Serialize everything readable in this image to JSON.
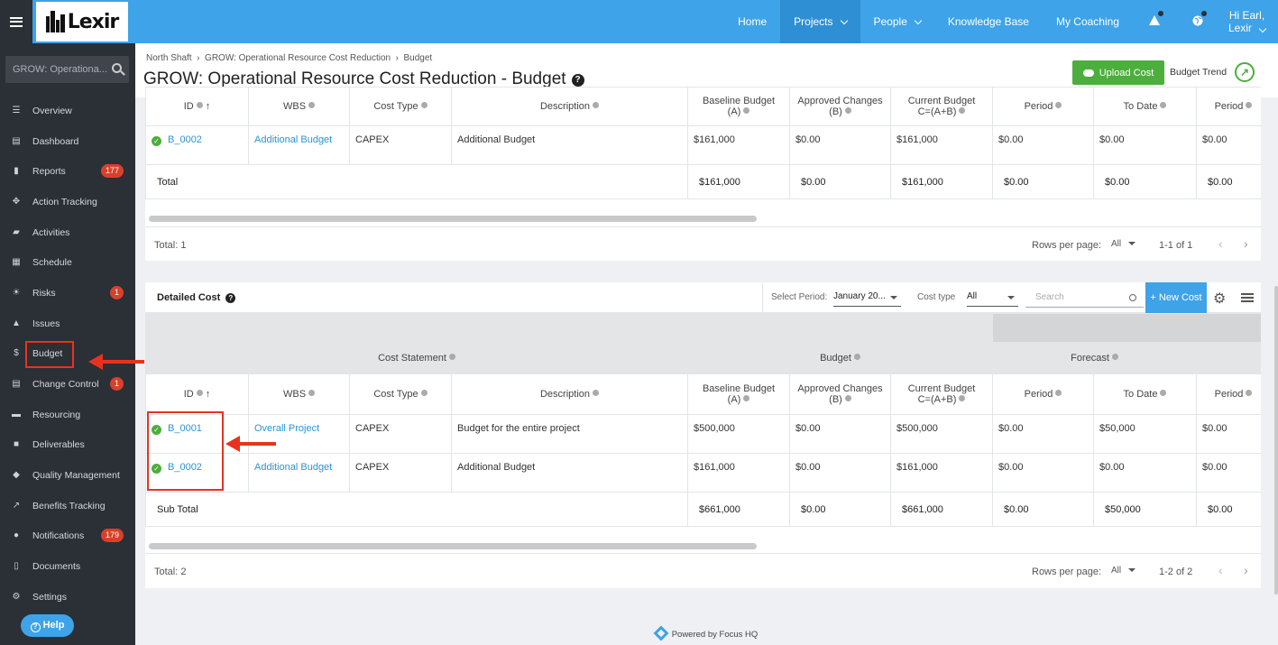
{
  "topbar": {
    "logo_text": "Lexir",
    "nav": [
      {
        "label": "Home",
        "dropdown": false
      },
      {
        "label": "Projects",
        "dropdown": true,
        "active": true
      },
      {
        "label": "People",
        "dropdown": true
      },
      {
        "label": "Knowledge Base",
        "dropdown": false
      },
      {
        "label": "My Coaching",
        "dropdown": false
      }
    ],
    "icons": [
      "alert-icon",
      "globe-icon"
    ],
    "user_line1": "Hi Earl,",
    "user_line2": "Lexir"
  },
  "sidebar": {
    "search_placeholder": "GROW: Operationa...",
    "items": [
      {
        "label": "Overview",
        "icon": "overview-icon",
        "glyph": "☰"
      },
      {
        "label": "Dashboard",
        "icon": "dashboard-icon",
        "glyph": "▤"
      },
      {
        "label": "Reports",
        "icon": "reports-icon",
        "glyph": "▮",
        "badge": "177"
      },
      {
        "label": "Action Tracking",
        "icon": "action-tracking-icon",
        "glyph": "✥"
      },
      {
        "label": "Activities",
        "icon": "activities-icon",
        "glyph": "▰"
      },
      {
        "label": "Schedule",
        "icon": "schedule-icon",
        "glyph": "▦"
      },
      {
        "label": "Risks",
        "icon": "risks-icon",
        "glyph": "☀",
        "badge": "1"
      },
      {
        "label": "Issues",
        "icon": "issues-icon",
        "glyph": "▲"
      },
      {
        "label": "Budget",
        "icon": "dollar-icon",
        "glyph": "$"
      },
      {
        "label": "Change Control",
        "icon": "change-control-icon",
        "glyph": "▤",
        "badge": "1"
      },
      {
        "label": "Resourcing",
        "icon": "resourcing-icon",
        "glyph": "▬"
      },
      {
        "label": "Deliverables",
        "icon": "deliverables-icon",
        "glyph": "■"
      },
      {
        "label": "Quality Management",
        "icon": "quality-icon",
        "glyph": "◆"
      },
      {
        "label": "Benefits Tracking",
        "icon": "benefits-icon",
        "glyph": "↗"
      },
      {
        "label": "Notifications",
        "icon": "bell-icon",
        "glyph": "●",
        "badge": "179"
      },
      {
        "label": "Documents",
        "icon": "documents-icon",
        "glyph": "▯"
      },
      {
        "label": "Settings",
        "icon": "gear-icon",
        "glyph": "⚙"
      }
    ],
    "help_label": "Help"
  },
  "header": {
    "breadcrumb": [
      "North Shaft",
      "GROW: Operational Resource Cost Reduction",
      "Budget"
    ],
    "title": "GROW: Operational Resource Cost Reduction - Budget",
    "upload_label": "Upload Cost",
    "trend_label": "Budget Trend"
  },
  "columns": [
    "ID",
    "WBS",
    "Cost Type",
    "Description",
    "Baseline Budget (A)",
    "Approved Changes (B)",
    "Current Budget C=(A+B)",
    "Period",
    "To Date",
    "Period"
  ],
  "columns_split": [
    [
      "ID"
    ],
    [
      "WBS"
    ],
    [
      "Cost Type"
    ],
    [
      "Description"
    ],
    [
      "Baseline Budget",
      "(A)"
    ],
    [
      "Approved Changes",
      "(B)"
    ],
    [
      "Current Budget",
      "C=(A+B)"
    ],
    [
      "Period"
    ],
    [
      "To Date"
    ],
    [
      "Period"
    ]
  ],
  "summary_table": {
    "rows": [
      [
        "B_0002",
        "Additional Budget",
        "CAPEX",
        "Additional Budget",
        "$161,000",
        "$0.00",
        "$161,000",
        "$0.00",
        "$0.00",
        "$0.00"
      ]
    ],
    "total": [
      "Total",
      "$161,000",
      "$0.00",
      "$161,000",
      "$0.00",
      "$0.00",
      "$0.00"
    ],
    "footer": {
      "total": "Total: 1",
      "rows_per_page": "Rows per page:",
      "rpp_value": "All",
      "page": "1-1 of 1"
    }
  },
  "detailed": {
    "title": "Detailed Cost",
    "select_period_label": "Select Period:",
    "select_period_value": "January 20...",
    "cost_type_label": "Cost type",
    "cost_type_value": "All",
    "search_placeholder": "Search",
    "new_cost_label": "+ New Cost",
    "groups": [
      "Cost Statement",
      "Budget",
      "Forecast"
    ],
    "rows": [
      [
        "B_0001",
        "Overall Project",
        "CAPEX",
        "Budget for the entire project",
        "$500,000",
        "$0.00",
        "$500,000",
        "$0.00",
        "$50,000",
        "$0.00"
      ],
      [
        "B_0002",
        "Additional Budget",
        "CAPEX",
        "Additional Budget",
        "$161,000",
        "$0.00",
        "$161,000",
        "$0.00",
        "$0.00",
        "$0.00"
      ]
    ],
    "total": [
      "Sub Total",
      "$661,000",
      "$0.00",
      "$661,000",
      "$0.00",
      "$50,000",
      "$0.00"
    ],
    "footer": {
      "total": "Total: 2",
      "rows_per_page": "Rows per page:",
      "rpp_value": "All",
      "page": "1-2 of 2"
    }
  },
  "footer": {
    "powered": "Powered by Focus HQ"
  },
  "colors": {
    "accent": "#3ea3e8",
    "sidebar": "#2b2f36",
    "success": "#4cae3c",
    "annotation": "#e8321f",
    "badge": "#d9402b"
  }
}
